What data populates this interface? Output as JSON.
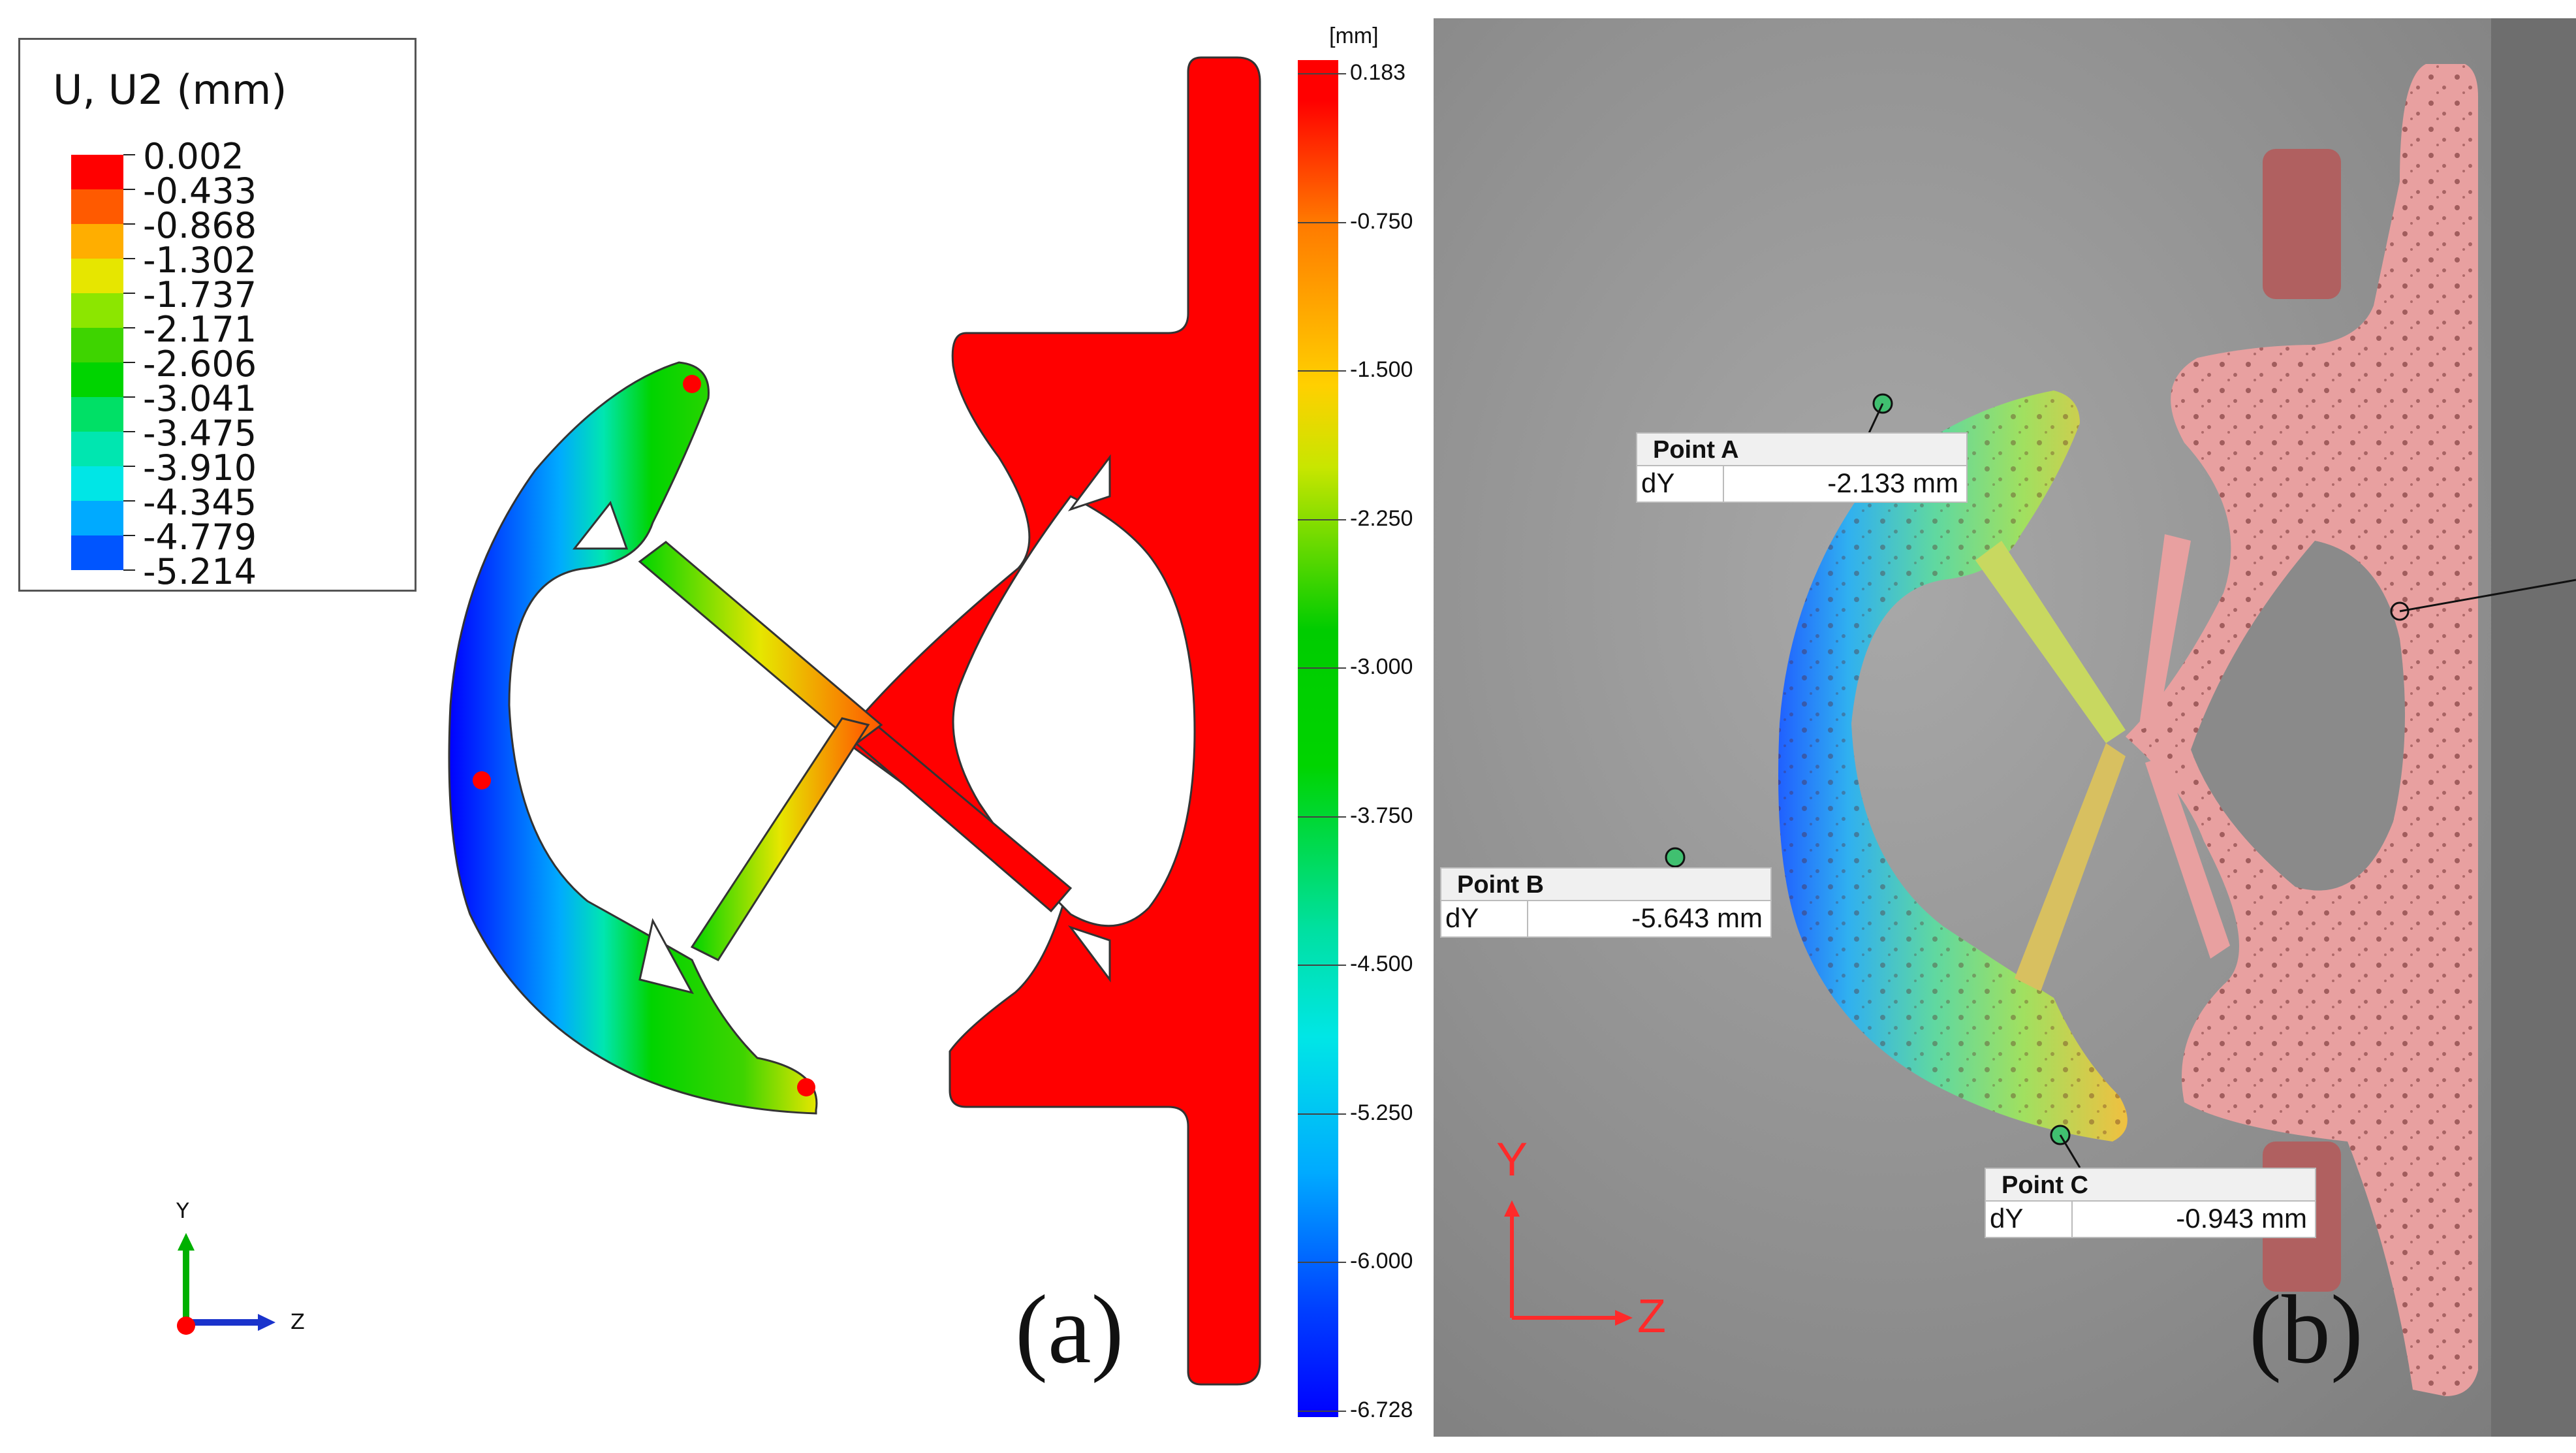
{
  "legend": {
    "title": "U, U2 (mm)",
    "entries": [
      {
        "value": "0.002",
        "color": "#ff0000"
      },
      {
        "value": "-0.433",
        "color": "#ff5a00"
      },
      {
        "value": "-0.868",
        "color": "#ffae00"
      },
      {
        "value": "-1.302",
        "color": "#e6e600"
      },
      {
        "value": "-1.737",
        "color": "#8ce600"
      },
      {
        "value": "-2.171",
        "color": "#3ed400"
      },
      {
        "value": "-2.606",
        "color": "#00d400"
      },
      {
        "value": "-3.041",
        "color": "#00e066"
      },
      {
        "value": "-3.475",
        "color": "#00e6b0"
      },
      {
        "value": "-3.910",
        "color": "#00e6e6"
      },
      {
        "value": "-4.345",
        "color": "#00aaff"
      },
      {
        "value": "-4.779",
        "color": "#0055ff"
      },
      {
        "value": "-5.214",
        "color": "#0000ff"
      }
    ]
  },
  "axes_triad": {
    "y": "Y",
    "z": "Z"
  },
  "panel_a_label": "(a)",
  "colorbar": {
    "unit": "[mm]",
    "ticks": [
      "0.183",
      "-0.750",
      "-1.500",
      "-2.250",
      "-3.000",
      "-3.750",
      "-4.500",
      "-5.250",
      "-6.000",
      "-6.728"
    ]
  },
  "points": [
    {
      "name": "Point A",
      "key": "dY",
      "value": "-2.133 mm"
    },
    {
      "name": "Point B",
      "key": "dY",
      "value": "-5.643 mm"
    },
    {
      "name": "Point C",
      "key": "dY",
      "value": "-0.943 mm"
    }
  ],
  "photo_axes": {
    "y": "Y",
    "z": "Z"
  },
  "panel_b_label": "(b)",
  "colors": {
    "fixed_part": "#ff0000",
    "overlay_fixed": "#e8a0a0",
    "background_photo": "#8f8f8f"
  }
}
